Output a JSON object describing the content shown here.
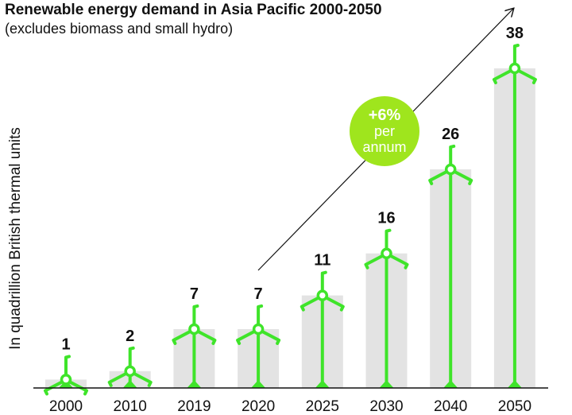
{
  "chart_data": {
    "type": "bar",
    "title": "Renewable energy demand in Asia Pacific 2000-2050",
    "subtitle": "(excludes biomass and small hydro)",
    "xlabel": "",
    "ylabel": "In quadrillion British thermal units",
    "categories": [
      "2000",
      "2010",
      "2019",
      "2020",
      "2025",
      "2030",
      "2040",
      "2050"
    ],
    "values": [
      1,
      2,
      7,
      7,
      11,
      16,
      26,
      38
    ],
    "ylim": [
      0,
      38
    ],
    "grid": false,
    "annotation": {
      "line1": "+6%",
      "line2": "per",
      "line3": "annum"
    },
    "colors": {
      "bar": "#e3e3e3",
      "turbine": "#3fe42a",
      "bubble": "#9fe51d",
      "trend": "#111111"
    }
  }
}
